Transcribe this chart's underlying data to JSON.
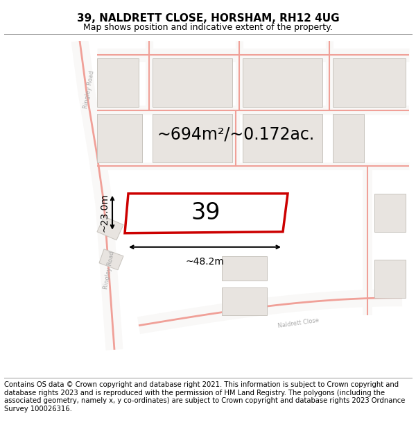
{
  "title_line1": "39, NALDRETT CLOSE, HORSHAM, RH12 4UG",
  "title_line2": "Map shows position and indicative extent of the property.",
  "area_text": "~694m²/~0.172ac.",
  "width_label": "~48.2m",
  "height_label": "~23.0m",
  "property_number": "39",
  "footer_text": "Contains OS data © Crown copyright and database right 2021. This information is subject to Crown copyright and database rights 2023 and is reproduced with the permission of HM Land Registry. The polygons (including the associated geometry, namely x, y co-ordinates) are subject to Crown copyright and database rights 2023 Ordnance Survey 100026316.",
  "map_bg": "#f9f8f7",
  "road_color": "#f0a098",
  "building_fill": "#e8e4e0",
  "building_outline": "#c8c4be",
  "property_fill": "#ffffff",
  "property_outline": "#cc0000",
  "label_color": "#aaaaaa",
  "title_fontsize": 11,
  "subtitle_fontsize": 9,
  "footer_fontsize": 7.2,
  "area_fontsize": 17,
  "number_fontsize": 24,
  "dim_fontsize": 10
}
